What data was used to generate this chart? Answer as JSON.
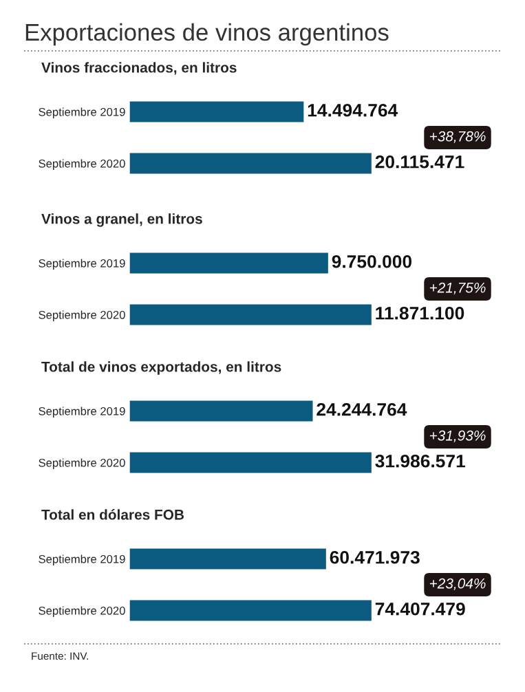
{
  "chart_data": [
    {
      "type": "bar",
      "orientation": "horizontal",
      "title": "Exportaciones de vinos argentinos",
      "subtitle": "Vinos fraccionados, en litros",
      "categories": [
        "Septiembre 2019",
        "Septiembre 2020"
      ],
      "values": [
        14494764,
        20115471
      ],
      "value_labels": [
        "14.494.764",
        "20.115.471"
      ],
      "color": "#0b5a80",
      "annotations": [
        "+38,78%"
      ],
      "grid": false,
      "legend": false,
      "tick_labels": "y"
    },
    {
      "type": "bar",
      "orientation": "horizontal",
      "title": "Vinos a granel, en litros",
      "categories": [
        "Septiembre 2019",
        "Septiembre 2020"
      ],
      "values": [
        9750000,
        11871100
      ],
      "value_labels": [
        "9.750.000",
        "11.871.100"
      ],
      "color": "#0b5a80",
      "annotations": [
        "+21,75%"
      ],
      "grid": false,
      "legend": false,
      "tick_labels": "y"
    },
    {
      "type": "bar",
      "orientation": "horizontal",
      "title": "Total de vinos exportados, en litros",
      "categories": [
        "Septiembre 2019",
        "Septiembre 2020"
      ],
      "values": [
        24244764,
        31986571
      ],
      "value_labels": [
        "24.244.764",
        "31.986.571"
      ],
      "color": "#0b5a80",
      "annotations": [
        "+31,93%"
      ],
      "grid": false,
      "legend": false,
      "tick_labels": "y"
    },
    {
      "type": "bar",
      "orientation": "horizontal",
      "title": "Total en dólares FOB",
      "categories": [
        "Septiembre 2019",
        "Septiembre 2020"
      ],
      "values": [
        60471973,
        74407479
      ],
      "value_labels": [
        "60.471.973",
        "74.407.479"
      ],
      "color": "#0b5a80",
      "annotations": [
        "+23,04%",
        "Fuente: INV."
      ],
      "grid": false,
      "legend": false,
      "tick_labels": "y"
    }
  ]
}
